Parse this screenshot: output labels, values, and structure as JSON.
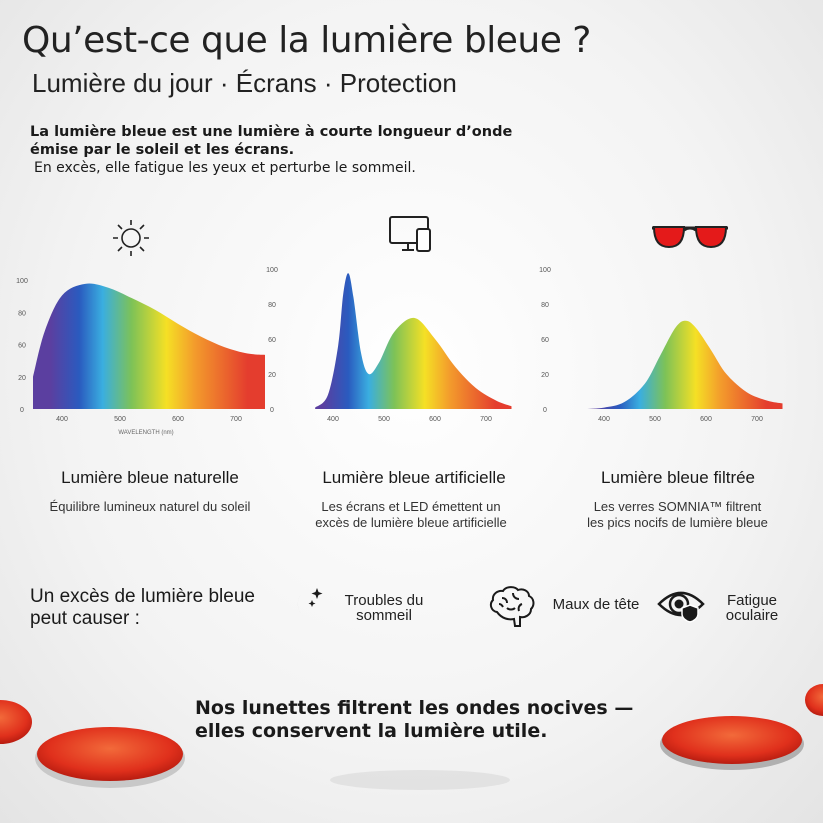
{
  "header": {
    "title": "Qu’est-ce que la lumière bleue ?",
    "subtitle": "Lumière du jour · Écrans · Protection"
  },
  "intro": {
    "bold": "La lumière bleue est une lumière à courte longueur d’onde émise par le soleil et les écrans.",
    "normal": "En excès, elle fatigue les yeux et perturbe le sommeil."
  },
  "columns": [
    {
      "icon": "sun-icon",
      "title": "Lumière bleue naturelle",
      "desc": "Équilibre lumineux naturel du soleil"
    },
    {
      "icon": "monitor-phone-icon",
      "title": "Lumière bleue artificielle",
      "desc": "Les écrans et LED émettent un excès de lumière bleue artificielle"
    },
    {
      "icon": "red-glasses-icon",
      "title": "Lumière bleue filtrée",
      "desc": "Les verres SOMNIA™ filtrent les pics nocifs de lumière bleue"
    }
  ],
  "chart_data": [
    {
      "type": "area",
      "xlabel": "WAVELENGTH (nm)",
      "x_ticks": [
        400,
        500,
        600,
        700
      ],
      "y_ticks": [
        "100",
        "80",
        "60",
        "20",
        "0"
      ],
      "xlim": [
        350,
        750
      ],
      "x": [
        350,
        370,
        400,
        440,
        480,
        520,
        560,
        600,
        640,
        680,
        720,
        750
      ],
      "values": [
        25,
        60,
        88,
        97,
        94,
        86,
        77,
        66,
        56,
        48,
        43,
        42
      ]
    },
    {
      "type": "area",
      "xlabel": "",
      "x_ticks": [
        400,
        500,
        600,
        700
      ],
      "y_ticks": [
        "100",
        "80",
        "60",
        "20",
        "0"
      ],
      "xlim": [
        365,
        750
      ],
      "x": [
        365,
        390,
        410,
        420,
        430,
        440,
        455,
        470,
        490,
        520,
        560,
        600,
        640,
        680,
        720,
        750
      ],
      "values": [
        1,
        10,
        45,
        82,
        97,
        80,
        40,
        25,
        33,
        55,
        65,
        50,
        30,
        15,
        6,
        2
      ]
    },
    {
      "type": "area",
      "xlabel": "",
      "x_ticks": [
        400,
        500,
        600,
        700
      ],
      "y_ticks": [
        "100",
        "80",
        "60",
        "20",
        "0"
      ],
      "xlim": [
        365,
        750
      ],
      "x": [
        365,
        400,
        440,
        480,
        510,
        540,
        560,
        580,
        610,
        640,
        680,
        720,
        750
      ],
      "values": [
        0,
        1,
        5,
        18,
        38,
        58,
        63,
        58,
        42,
        25,
        12,
        6,
        4
      ]
    }
  ],
  "effects": {
    "intro": "Un excès de lumière bleue peut causer :",
    "items": [
      {
        "icon": "moon-stars-icon",
        "label": "Troubles du sommeil"
      },
      {
        "icon": "brain-icon",
        "label": "Maux de tête"
      },
      {
        "icon": "eye-shield-icon",
        "label": "Fatigue oculaire"
      }
    ]
  },
  "footer": {
    "line1": "Nos lunettes filtrent les ondes nocives —",
    "line2": "elles conservent la lumière utile."
  },
  "colors": {
    "lens": "#e0301c",
    "spectrum": [
      "#5b3fa0",
      "#2a5bbf",
      "#3aaee0",
      "#7dc257",
      "#f5e025",
      "#f39a2c",
      "#e43d2e"
    ]
  }
}
